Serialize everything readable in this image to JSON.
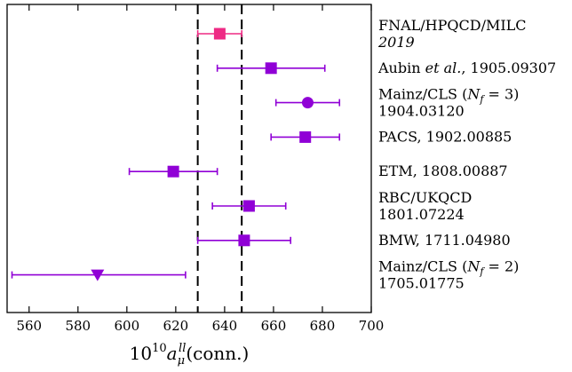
{
  "chart_data": {
    "type": "scatter",
    "subtype": "forest-plot",
    "xlabel": {
      "base": "10",
      "exp": "10",
      "var": "a",
      "sub": "μ",
      "sup": "ll",
      "suffix": "(conn.)"
    },
    "xlim": [
      551,
      700
    ],
    "xticks": [
      560,
      580,
      600,
      620,
      640,
      660,
      680,
      700
    ],
    "grid": false,
    "band": {
      "low": 629,
      "high": 647,
      "style": "dashed"
    },
    "colors": {
      "highlight": "#ee2a84",
      "default": "#9000d6",
      "band": "#000000"
    },
    "entries": [
      {
        "lines": [
          "FNAL/HPQCD/MILC",
          "2019"
        ],
        "italic_line": 1,
        "value": 638,
        "err_low": 629,
        "err_high": 647,
        "marker": "square",
        "color": "#ee2a84"
      },
      {
        "lines": [
          "Aubin et al., 1905.09307"
        ],
        "value": 659,
        "err_low": 637,
        "err_high": 681,
        "marker": "square",
        "color": "#9000d6"
      },
      {
        "lines": [
          "Mainz/CLS (N_f = 3)",
          "1904.03120"
        ],
        "value": 674,
        "err_low": 661,
        "err_high": 687,
        "marker": "circle",
        "color": "#9000d6"
      },
      {
        "lines": [
          "PACS, 1902.00885"
        ],
        "value": 673,
        "err_low": 659,
        "err_high": 687,
        "marker": "square",
        "color": "#9000d6"
      },
      {
        "lines": [
          "ETM, 1808.00887"
        ],
        "value": 619,
        "err_low": 601,
        "err_high": 637,
        "marker": "square",
        "color": "#9000d6"
      },
      {
        "lines": [
          "RBC/UKQCD",
          "1801.07224"
        ],
        "value": 650,
        "err_low": 635,
        "err_high": 665,
        "marker": "square",
        "color": "#9000d6"
      },
      {
        "lines": [
          "BMW, 1711.04980"
        ],
        "value": 648,
        "err_low": 629,
        "err_high": 667,
        "marker": "square",
        "color": "#9000d6"
      },
      {
        "lines": [
          "Mainz/CLS (N_f = 2)",
          "1705.01775"
        ],
        "value": 588,
        "err_low": 553,
        "err_high": 624,
        "marker": "triangle-down",
        "color": "#9000d6"
      }
    ]
  }
}
